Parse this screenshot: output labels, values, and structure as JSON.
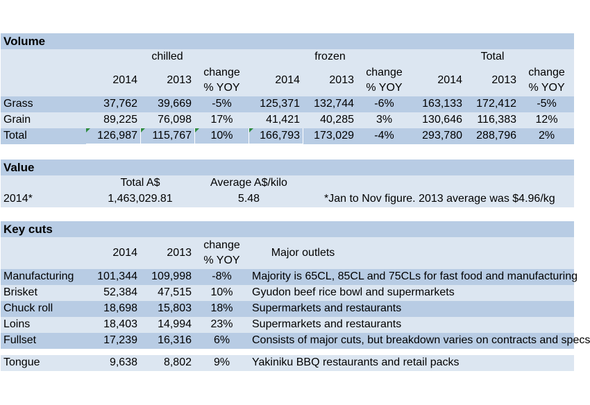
{
  "volume": {
    "title": "Volume",
    "groups": {
      "chilled": "chilled",
      "frozen": "frozen",
      "total": "Total"
    },
    "col_2014": "2014",
    "col_2013": "2013",
    "col_change": "change % YOY",
    "rows": [
      {
        "label": "Grass",
        "c2014": "37,762",
        "c2013": "39,669",
        "cchg": "-5%",
        "f2014": "125,371",
        "f2013": "132,744",
        "fchg": "-6%",
        "t2014": "163,133",
        "t2013": "172,412",
        "tchg": "-5%"
      },
      {
        "label": "Grain",
        "c2014": "89,225",
        "c2013": "76,098",
        "cchg": "17%",
        "f2014": "41,421",
        "f2013": "40,285",
        "fchg": "3%",
        "t2014": "130,646",
        "t2013": "116,383",
        "tchg": "12%"
      },
      {
        "label": "Total",
        "c2014": "126,987",
        "c2013": "115,767",
        "cchg": "10%",
        "f2014": "166,793",
        "f2013": "173,029",
        "fchg": "-4%",
        "t2014": "293,780",
        "t2013": "288,796",
        "tchg": "2%"
      }
    ]
  },
  "value": {
    "title": "Value",
    "col_total": "Total A$",
    "col_avg": "Average A$/kilo",
    "row": {
      "label": "2014*",
      "total": "1,463,029.81",
      "avg": "5.48",
      "note": "*Jan to Nov figure. 2013 average was $4.96/kg"
    }
  },
  "key_cuts": {
    "title": "Key cuts",
    "col_2014": "2014",
    "col_2013": "2013",
    "col_change": "change % YOY",
    "col_outlets": "Major outlets",
    "rows": [
      {
        "label": "Manufacturing",
        "v2014": "101,344",
        "v2013": "109,998",
        "chg": "-8%",
        "outlets": "Majority is 65CL, 85CL and 75CLs for fast food and manufacturing"
      },
      {
        "label": "Brisket",
        "v2014": "52,384",
        "v2013": "47,515",
        "chg": "10%",
        "outlets": "Gyudon beef rice bowl and supermarkets"
      },
      {
        "label": "Chuck roll",
        "v2014": "18,698",
        "v2013": "15,803",
        "chg": "18%",
        "outlets": "Supermarkets and restaurants"
      },
      {
        "label": "Loins",
        "v2014": "18,403",
        "v2013": "14,994",
        "chg": "23%",
        "outlets": "Supermarkets and restaurants"
      },
      {
        "label": "Fullset",
        "v2014": "17,239",
        "v2013": "16,316",
        "chg": "6%",
        "outlets": "Consists of major cuts, but breakdown varies on contracts and specs"
      },
      {
        "label": "Tongue",
        "v2014": "9,638",
        "v2013": "8,802",
        "chg": "9%",
        "outlets": "Yakiniku BBQ restaurants and retail packs"
      }
    ]
  }
}
